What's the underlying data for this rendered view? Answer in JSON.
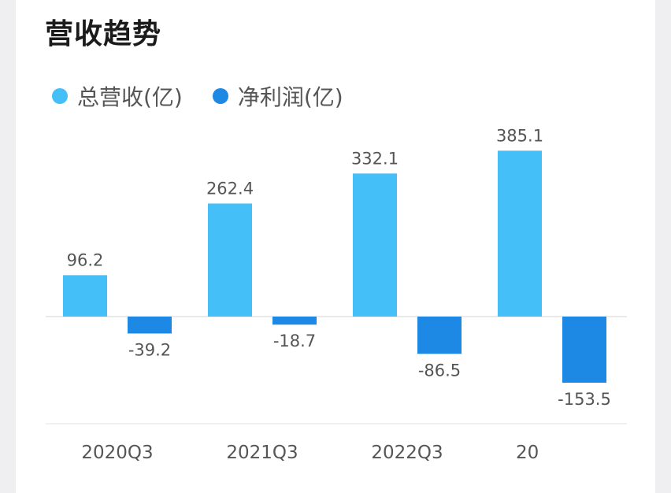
{
  "page": {
    "title": "营收趋势"
  },
  "legend": [
    {
      "label": "总营收(亿)",
      "color": "#45bff8"
    },
    {
      "label": "净利润(亿)",
      "color": "#1e88e5"
    }
  ],
  "chart_data": {
    "type": "bar",
    "title": "营收趋势",
    "categories": [
      "2020Q3",
      "2021Q3",
      "2022Q3",
      "20"
    ],
    "series": [
      {
        "name": "总营收(亿)",
        "color": "#45bff8",
        "values": [
          96.2,
          262.4,
          332.1,
          385.1
        ]
      },
      {
        "name": "净利润(亿)",
        "color": "#1e88e5",
        "values": [
          -39.2,
          -18.7,
          -86.5,
          -153.5
        ]
      }
    ],
    "value_labels": [
      [
        "96.2",
        "262.4",
        "332.1",
        "385.1"
      ],
      [
        "-39.2",
        "-18.7",
        "-86.5",
        "-153.5"
      ]
    ],
    "xlabel": "",
    "ylabel": "",
    "grid": false,
    "legend_position": "top-left"
  }
}
